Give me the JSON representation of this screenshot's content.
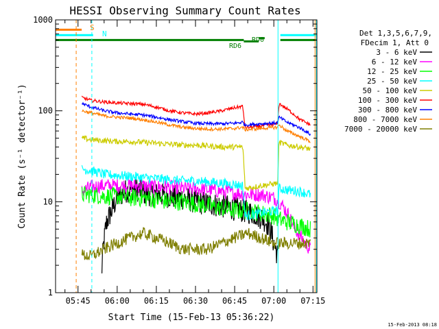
{
  "chart_data": {
    "type": "line",
    "title": "HESSI Observing Summary Count Rates",
    "xlabel": "Start Time (15-Feb-13 05:36:22)",
    "ylabel": "Count Rate (s⁻¹ detector⁻¹)",
    "yscale": "log",
    "ylim": [
      1,
      1000
    ],
    "xlim_min": [
      36.4,
      136.5
    ],
    "y_ticks": [
      {
        "value": 1,
        "label": "1"
      },
      {
        "value": 10,
        "label": "10"
      },
      {
        "value": 100,
        "label": "100"
      },
      {
        "value": 1000,
        "label": "1000"
      }
    ],
    "x_ticks": [
      {
        "value": 45,
        "label": "05:45"
      },
      {
        "value": 60,
        "label": "06:00"
      },
      {
        "value": 75,
        "label": "06:15"
      },
      {
        "value": 90,
        "label": "06:30"
      },
      {
        "value": 105,
        "label": "06:45"
      },
      {
        "value": 120,
        "label": "07:00"
      },
      {
        "value": 135,
        "label": "07:15"
      }
    ],
    "legend_header": [
      "Det 1,3,5,6,7,9,",
      "FDecim 1, Att 0"
    ],
    "legend_position": "right",
    "annotations": {
      "saa_label": "S",
      "night_label": "N",
      "rd0_label": "RD0",
      "rd6_label": "RD6",
      "timestamp": "15-Feb-2013 08:18"
    },
    "bands": [
      {
        "t": [
          36.4,
          46.4
        ],
        "y": 780,
        "color": "#ff7f00"
      },
      {
        "t": [
          36.4,
          50.8
        ],
        "y": 680,
        "color": "#00ffff"
      },
      {
        "t": [
          36.4,
          108.5
        ],
        "y": 600,
        "color": "#007f00"
      },
      {
        "t": [
          108.5,
          114.2
        ],
        "y": 580,
        "color": "#007f00"
      },
      {
        "t": [
          114.2,
          116.5
        ],
        "y": 630,
        "color": "#007f00"
      },
      {
        "t": [
          122.5,
          136.2
        ],
        "y": 680,
        "color": "#00ffff"
      },
      {
        "t": [
          122.5,
          136.2
        ],
        "y": 600,
        "color": "#007f00"
      }
    ],
    "vlines": [
      {
        "t": 44.3,
        "style": "dashed",
        "color": "#ff7f00"
      },
      {
        "t": 50.3,
        "style": "dashed",
        "color": "#00ffff"
      },
      {
        "t": 121.6,
        "style": "solid",
        "color": "#00ffff"
      },
      {
        "t": 135.8,
        "style": "solid",
        "color": "#ff7f00"
      },
      {
        "t": 136.3,
        "style": "solid",
        "color": "#00ffff"
      }
    ],
    "series": [
      {
        "name": "3 - 6 keV",
        "color": "#000000",
        "x": [
          54,
          56,
          58,
          60,
          63,
          66,
          68,
          70,
          73,
          76,
          80,
          85,
          90,
          95,
          100,
          104,
          108,
          112,
          116,
          118,
          120,
          121.5
        ],
        "y": [
          1.5,
          6,
          8,
          11,
          13,
          14,
          13.5,
          12.5,
          12,
          12,
          11.5,
          11,
          10,
          9.5,
          9,
          8.5,
          8,
          7.5,
          6.5,
          5.5,
          3.5,
          2.5
        ],
        "noise": 0.3
      },
      {
        "name": "6 - 12 keV",
        "color": "#ff00ff",
        "x": [
          46.5,
          50,
          55,
          60,
          65,
          70,
          75,
          80,
          85,
          90,
          95,
          100,
          105,
          110,
          115,
          120,
          121.5,
          124,
          128,
          132,
          134
        ],
        "y": [
          13,
          14.5,
          15,
          15,
          15,
          15,
          14.5,
          14.5,
          14,
          14,
          13.5,
          13,
          12.5,
          12,
          12,
          11,
          10.5,
          8.5,
          5,
          3.5,
          3
        ],
        "noise": 0.18
      },
      {
        "name": "12 - 25 keV",
        "color": "#00ff00",
        "x": [
          46.5,
          50,
          55,
          60,
          65,
          70,
          75,
          80,
          85,
          90,
          95,
          100,
          105,
          110,
          115,
          120,
          121.5,
          125,
          130,
          134
        ],
        "y": [
          12,
          12,
          11.5,
          11.5,
          11,
          11,
          10.5,
          10,
          10,
          9.5,
          9,
          8.5,
          8,
          8,
          7.5,
          7,
          6.5,
          6,
          5.5,
          5
        ],
        "noise": 0.22
      },
      {
        "name": "25 - 50 keV",
        "color": "#00ffff",
        "x": [
          46.5,
          50,
          55,
          60,
          65,
          70,
          75,
          80,
          85,
          90,
          95,
          100,
          105,
          108,
          109,
          115,
          121.5,
          122,
          125,
          130,
          134
        ],
        "y": [
          23,
          22,
          20,
          19.5,
          19,
          18.5,
          18,
          17.5,
          17,
          17,
          16.5,
          16,
          15.5,
          15,
          7,
          7.5,
          8,
          14,
          13.5,
          13,
          12
        ],
        "noise": 0.12
      },
      {
        "name": "50 - 100 keV",
        "color": "#cccc00",
        "x": [
          46.5,
          50,
          55,
          60,
          65,
          70,
          75,
          80,
          85,
          90,
          95,
          100,
          105,
          108,
          109,
          115,
          121.5,
          122,
          125,
          130,
          134
        ],
        "y": [
          50,
          48,
          47,
          46,
          46,
          45,
          44,
          43,
          42,
          42,
          41,
          40,
          40,
          40,
          14,
          15,
          16,
          45,
          42,
          40,
          38
        ],
        "noise": 0.07
      },
      {
        "name": "100 - 300 keV",
        "color": "#ff0000",
        "x": [
          46.5,
          50,
          55,
          60,
          65,
          70,
          75,
          80,
          85,
          90,
          95,
          100,
          105,
          108,
          109,
          115,
          121.5,
          122,
          124,
          127,
          130,
          134
        ],
        "y": [
          140,
          130,
          125,
          122,
          120,
          118,
          110,
          100,
          95,
          92,
          95,
          100,
          108,
          112,
          65,
          68,
          72,
          120,
          110,
          95,
          80,
          70
        ],
        "noise": 0.04
      },
      {
        "name": "300 - 800 keV",
        "color": "#0000ff",
        "x": [
          46.5,
          50,
          55,
          60,
          65,
          70,
          75,
          80,
          85,
          90,
          95,
          100,
          105,
          108,
          109,
          115,
          121.5,
          122,
          125,
          130,
          134
        ],
        "y": [
          120,
          110,
          100,
          95,
          92,
          90,
          85,
          80,
          76,
          73,
          72,
          72,
          73,
          75,
          70,
          72,
          74,
          85,
          75,
          65,
          55
        ],
        "noise": 0.04
      },
      {
        "name": "800 - 7000 keV",
        "color": "#ff7f00",
        "x": [
          46.5,
          50,
          55,
          60,
          65,
          70,
          75,
          80,
          85,
          90,
          95,
          100,
          105,
          108,
          109,
          115,
          121.5,
          122,
          125,
          130,
          134
        ],
        "y": [
          100,
          95,
          88,
          85,
          83,
          80,
          75,
          70,
          66,
          64,
          63,
          63,
          64,
          66,
          62,
          64,
          66,
          70,
          60,
          52,
          46
        ],
        "noise": 0.04
      },
      {
        "name": "7000 - 20000 keV",
        "color": "#7f7f00",
        "x": [
          46.5,
          50,
          55,
          60,
          65,
          70,
          75,
          80,
          85,
          90,
          95,
          100,
          105,
          110,
          115,
          120,
          122,
          128,
          134
        ],
        "y": [
          2.6,
          2.5,
          3,
          3.5,
          4,
          4.5,
          4,
          3.5,
          3,
          3,
          3,
          3.5,
          4,
          4.5,
          4,
          3.5,
          3.5,
          3.5,
          3.5
        ],
        "noise": 0.15
      }
    ]
  }
}
